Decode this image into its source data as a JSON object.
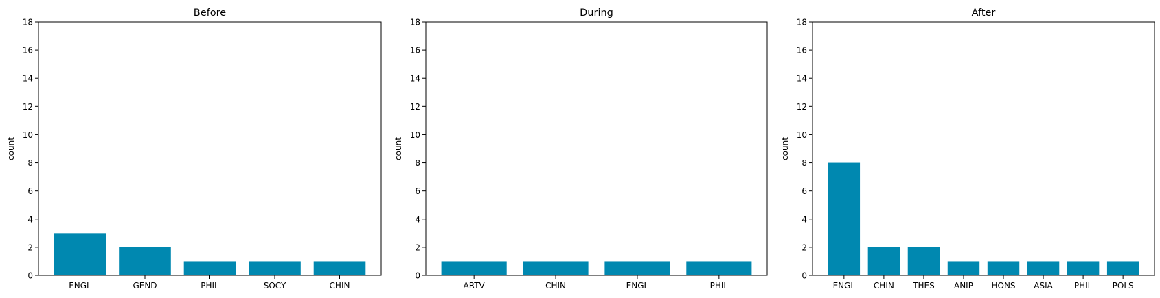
{
  "chart_data": [
    {
      "type": "bar",
      "title": "Before",
      "ylabel": "count",
      "xlabel": "",
      "categories": [
        "ENGL",
        "GEND",
        "PHIL",
        "SOCY",
        "CHIN"
      ],
      "values": [
        3,
        2,
        1,
        1,
        1
      ],
      "ylim": [
        0,
        18
      ],
      "yticks": [
        0,
        2,
        4,
        6,
        8,
        10,
        12,
        14,
        16,
        18
      ],
      "grid": false,
      "bar_color": "#0088b0"
    },
    {
      "type": "bar",
      "title": "During",
      "ylabel": "count",
      "xlabel": "",
      "categories": [
        "ARTV",
        "CHIN",
        "ENGL",
        "PHIL"
      ],
      "values": [
        1,
        1,
        1,
        1
      ],
      "ylim": [
        0,
        18
      ],
      "yticks": [
        0,
        2,
        4,
        6,
        8,
        10,
        12,
        14,
        16,
        18
      ],
      "grid": false,
      "bar_color": "#0088b0"
    },
    {
      "type": "bar",
      "title": "After",
      "ylabel": "count",
      "xlabel": "",
      "categories": [
        "ENGL",
        "CHIN",
        "THES",
        "ANIP",
        "HONS",
        "ASIA",
        "PHIL",
        "POLS"
      ],
      "values": [
        8,
        2,
        2,
        1,
        1,
        1,
        1,
        1
      ],
      "ylim": [
        0,
        18
      ],
      "yticks": [
        0,
        2,
        4,
        6,
        8,
        10,
        12,
        14,
        16,
        18
      ],
      "grid": false,
      "bar_color": "#0088b0"
    }
  ]
}
